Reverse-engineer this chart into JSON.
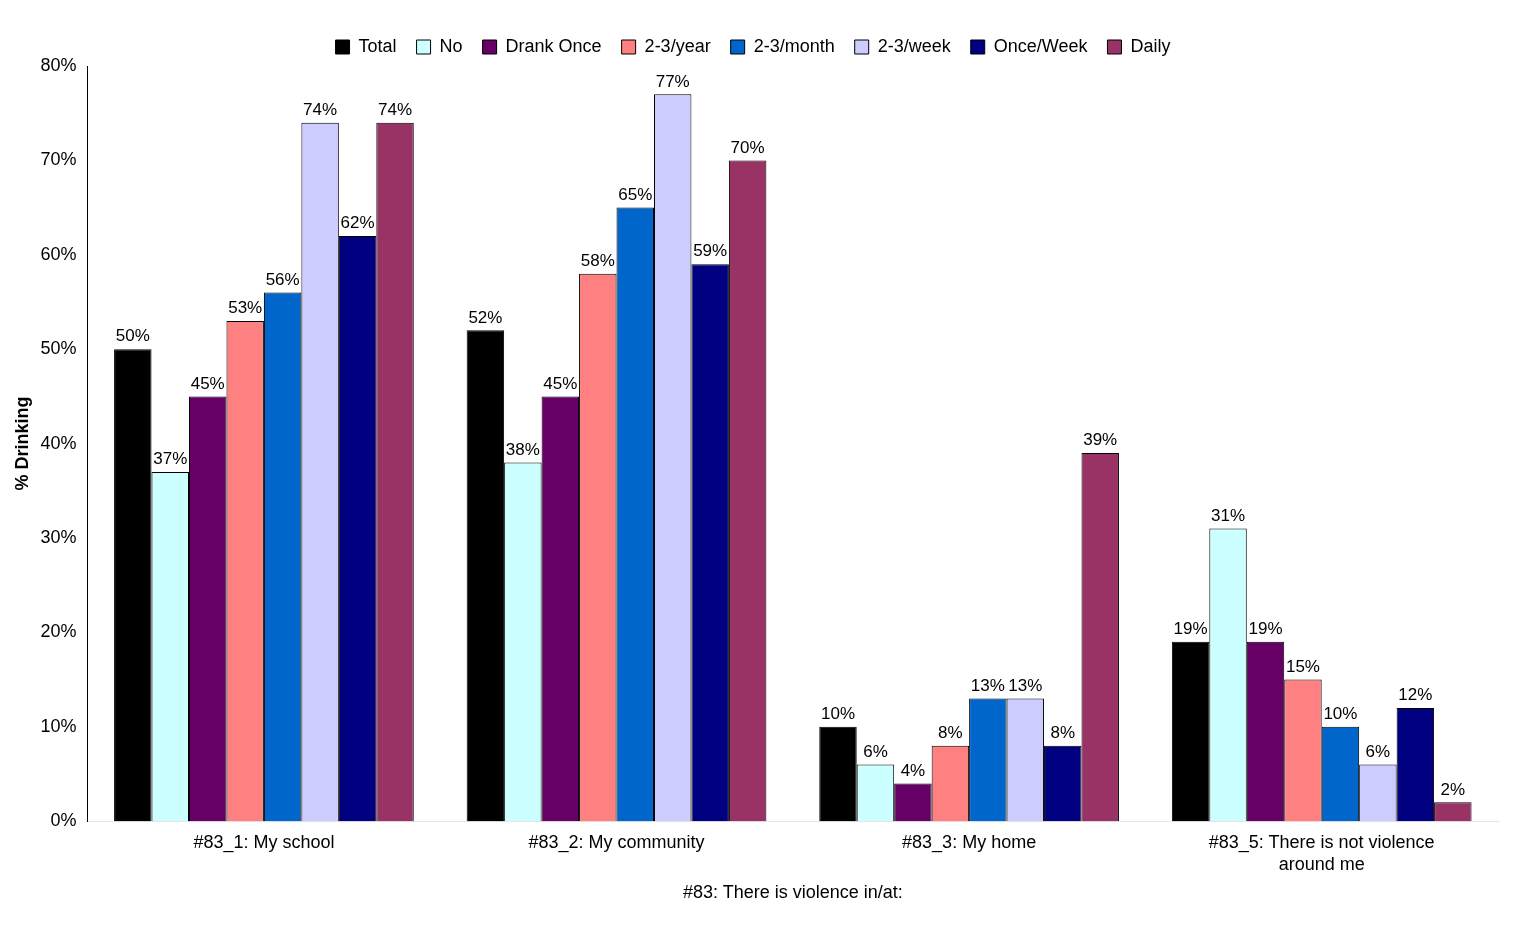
{
  "chart_data": {
    "type": "bar",
    "ylabel": "% Drinking",
    "xlabel": "#83: There is violence in/at:",
    "categories": [
      "#83_1: My school",
      "#83_2: My community",
      "#83_3: My home",
      "#83_5: There is not violence around me"
    ],
    "ylim": [
      0,
      80
    ],
    "yticks": [
      {
        "value": 0,
        "label": "0%"
      },
      {
        "value": 10,
        "label": "10%"
      },
      {
        "value": 20,
        "label": "20%"
      },
      {
        "value": 30,
        "label": "30%"
      },
      {
        "value": 40,
        "label": "40%"
      },
      {
        "value": 50,
        "label": "50%"
      },
      {
        "value": 60,
        "label": "60%"
      },
      {
        "value": 70,
        "label": "70%"
      },
      {
        "value": 80,
        "label": "80%"
      }
    ],
    "grid": false,
    "legend": "top",
    "series": [
      {
        "name": "Total",
        "color": "#000000",
        "values": [
          50,
          52,
          10,
          19
        ],
        "value_labels": [
          "50%",
          "52%",
          "10%",
          "19%"
        ]
      },
      {
        "name": "No",
        "color": "#ccffff",
        "values": [
          37,
          38,
          6,
          31
        ],
        "value_labels": [
          "37%",
          "38%",
          "6%",
          "31%"
        ]
      },
      {
        "name": "Drank Once",
        "color": "#660066",
        "values": [
          45,
          45,
          4,
          19
        ],
        "value_labels": [
          "45%",
          "45%",
          "4%",
          "19%"
        ]
      },
      {
        "name": "2-3/year",
        "color": "#ff8080",
        "values": [
          53,
          58,
          8,
          15
        ],
        "value_labels": [
          "53%",
          "58%",
          "8%",
          "15%"
        ]
      },
      {
        "name": "2-3/month",
        "color": "#0066cc",
        "values": [
          56,
          65,
          13,
          10
        ],
        "value_labels": [
          "56%",
          "65%",
          "13%",
          "10%"
        ]
      },
      {
        "name": "2-3/week",
        "color": "#ccccff",
        "values": [
          74,
          77,
          13,
          6
        ],
        "value_labels": [
          "74%",
          "77%",
          "13%",
          "6%"
        ]
      },
      {
        "name": "Once/Week",
        "color": "#000080",
        "values": [
          62,
          59,
          8,
          12
        ],
        "value_labels": [
          "62%",
          "59%",
          "8%",
          "12%"
        ]
      },
      {
        "name": "Daily",
        "color": "#993366",
        "values": [
          74,
          70,
          39,
          2
        ],
        "value_labels": [
          "74%",
          "70%",
          "39%",
          "2%"
        ]
      }
    ]
  }
}
